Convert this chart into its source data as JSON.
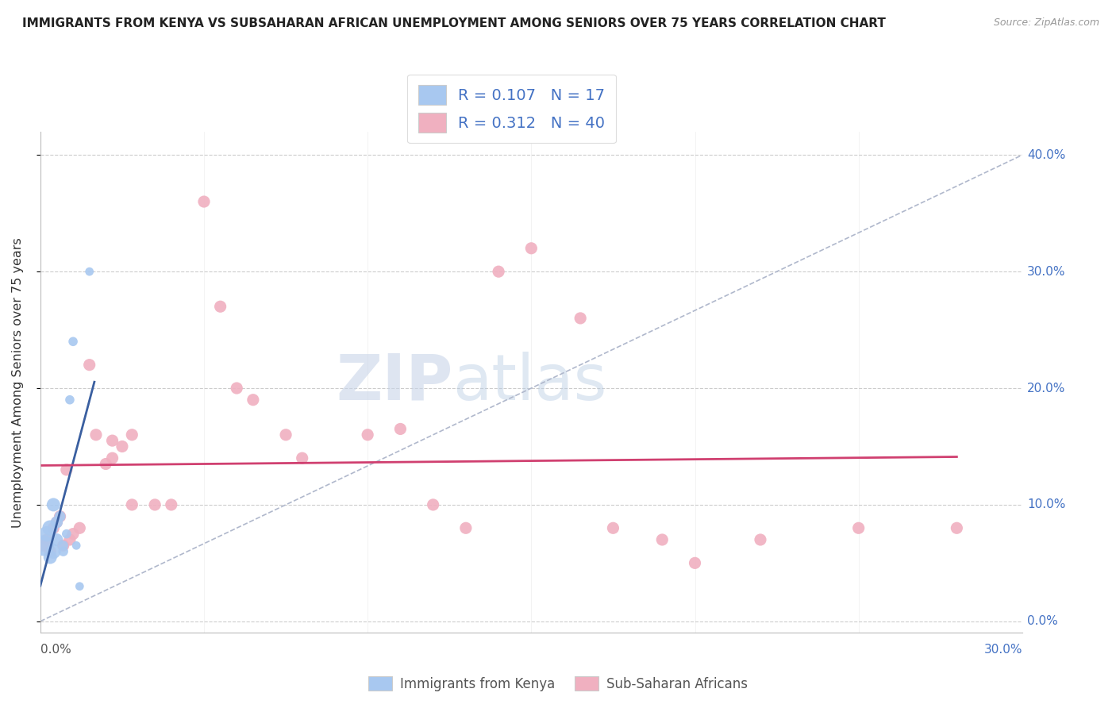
{
  "title": "IMMIGRANTS FROM KENYA VS SUBSAHARAN AFRICAN UNEMPLOYMENT AMONG SENIORS OVER 75 YEARS CORRELATION CHART",
  "source": "Source: ZipAtlas.com",
  "ylabel_label": "Unemployment Among Seniors over 75 years",
  "y_tick_labels": [
    "0.0%",
    "10.0%",
    "20.0%",
    "30.0%",
    "40.0%"
  ],
  "y_tick_values": [
    0.0,
    0.1,
    0.2,
    0.3,
    0.4
  ],
  "xlim": [
    0.0,
    0.3
  ],
  "ylim": [
    -0.01,
    0.42
  ],
  "kenya_R": 0.107,
  "kenya_N": 17,
  "subsaharan_R": 0.312,
  "subsaharan_N": 40,
  "kenya_color": "#a8c8f0",
  "kenya_line_color": "#3a5fa0",
  "subsaharan_color": "#f0b0c0",
  "subsaharan_line_color": "#d04070",
  "watermark_zip": "ZIP",
  "watermark_atlas": "atlas",
  "kenya_scatter_x": [
    0.001,
    0.002,
    0.003,
    0.003,
    0.004,
    0.004,
    0.005,
    0.005,
    0.006,
    0.007,
    0.007,
    0.008,
    0.009,
    0.01,
    0.011,
    0.012,
    0.015
  ],
  "kenya_scatter_y": [
    0.065,
    0.075,
    0.055,
    0.08,
    0.06,
    0.1,
    0.07,
    0.085,
    0.09,
    0.06,
    0.065,
    0.075,
    0.19,
    0.24,
    0.065,
    0.03,
    0.3
  ],
  "kenya_scatter_size": [
    350,
    200,
    150,
    200,
    180,
    150,
    130,
    120,
    100,
    80,
    80,
    70,
    70,
    70,
    60,
    60,
    60
  ],
  "subsaharan_scatter_x": [
    0.001,
    0.002,
    0.003,
    0.004,
    0.005,
    0.006,
    0.007,
    0.008,
    0.009,
    0.01,
    0.012,
    0.015,
    0.017,
    0.02,
    0.022,
    0.022,
    0.025,
    0.028,
    0.028,
    0.035,
    0.04,
    0.05,
    0.055,
    0.06,
    0.065,
    0.075,
    0.08,
    0.1,
    0.11,
    0.12,
    0.13,
    0.14,
    0.15,
    0.165,
    0.175,
    0.19,
    0.2,
    0.22,
    0.25,
    0.28
  ],
  "subsaharan_scatter_y": [
    0.065,
    0.07,
    0.06,
    0.08,
    0.085,
    0.09,
    0.065,
    0.13,
    0.07,
    0.075,
    0.08,
    0.22,
    0.16,
    0.135,
    0.14,
    0.155,
    0.15,
    0.1,
    0.16,
    0.1,
    0.1,
    0.36,
    0.27,
    0.2,
    0.19,
    0.16,
    0.14,
    0.16,
    0.165,
    0.1,
    0.08,
    0.3,
    0.32,
    0.26,
    0.08,
    0.07,
    0.05,
    0.07,
    0.08,
    0.08
  ],
  "subsaharan_scatter_size": [
    80,
    80,
    80,
    80,
    80,
    80,
    80,
    80,
    80,
    80,
    80,
    80,
    80,
    80,
    80,
    80,
    80,
    80,
    80,
    80,
    80,
    80,
    80,
    80,
    80,
    80,
    80,
    80,
    80,
    80,
    80,
    80,
    80,
    80,
    80,
    80,
    80,
    80,
    80,
    80
  ],
  "legend_label_kenya": "Immigrants from Kenya",
  "legend_label_subsaharan": "Sub-Saharan Africans"
}
